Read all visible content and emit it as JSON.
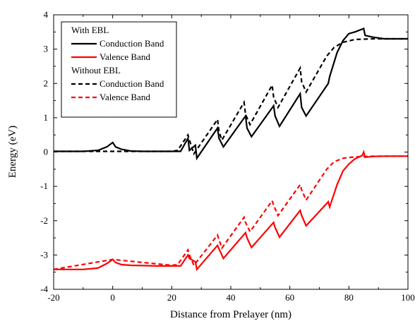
{
  "chart_data": {
    "type": "line",
    "title": "",
    "xlabel": "Distance from Prelayer (nm)",
    "ylabel": "Energy (eV)",
    "xlim": [
      -20,
      100
    ],
    "ylim": [
      -4,
      4
    ],
    "xticks": [
      -20,
      0,
      20,
      40,
      60,
      80,
      100
    ],
    "yticks": [
      -4,
      -3,
      -2,
      -1,
      0,
      1,
      2,
      3,
      4
    ],
    "grid": false,
    "legend_position": "top-left",
    "legend_groups": [
      {
        "header": "With EBL",
        "series": [
          0,
          1
        ]
      },
      {
        "header": "Without EBL",
        "series": [
          2,
          3
        ]
      }
    ],
    "series": [
      {
        "name": "Conduction Band",
        "group": "With EBL",
        "color": "#000000",
        "dash": "solid",
        "x": [
          -20,
          -10,
          -5,
          -2,
          0,
          1,
          3,
          6,
          10,
          15,
          20,
          23,
          25.5,
          26,
          28,
          28.5,
          35.5,
          36,
          37.5,
          45,
          45.5,
          47,
          54.5,
          55,
          56.5,
          63.5,
          64,
          65.5,
          73,
          73.5,
          76,
          78,
          80,
          82,
          85,
          85.5,
          88,
          92,
          96,
          100
        ],
        "y": [
          0.02,
          0.02,
          0.05,
          0.15,
          0.28,
          0.15,
          0.08,
          0.03,
          0.02,
          0.02,
          0.02,
          0.02,
          0.4,
          0.05,
          0.2,
          -0.18,
          0.7,
          0.4,
          0.15,
          1.05,
          0.7,
          0.45,
          1.35,
          1.05,
          0.75,
          1.7,
          1.3,
          1.05,
          2.0,
          2.2,
          2.9,
          3.25,
          3.45,
          3.5,
          3.6,
          3.4,
          3.35,
          3.3,
          3.3,
          3.3
        ]
      },
      {
        "name": "Valence Band",
        "group": "With EBL",
        "color": "#ff0000",
        "dash": "solid",
        "x": [
          -20,
          -10,
          -5,
          -2,
          0,
          1,
          3,
          6,
          10,
          15,
          20,
          23,
          25.5,
          26,
          28,
          28.5,
          35.5,
          36,
          37.5,
          45,
          45.5,
          47,
          54.5,
          55,
          56.5,
          63.5,
          64,
          65.5,
          73,
          73.5,
          76,
          78,
          80,
          82,
          84.5,
          85,
          85.5,
          88,
          92,
          96,
          100
        ],
        "y": [
          -3.42,
          -3.42,
          -3.38,
          -3.25,
          -3.13,
          -3.22,
          -3.28,
          -3.3,
          -3.31,
          -3.32,
          -3.32,
          -3.32,
          -3.0,
          -3.1,
          -3.2,
          -3.42,
          -2.72,
          -2.82,
          -3.1,
          -2.35,
          -2.5,
          -2.78,
          -2.05,
          -2.2,
          -2.48,
          -1.7,
          -1.85,
          -2.15,
          -1.45,
          -1.6,
          -0.95,
          -0.55,
          -0.35,
          -0.2,
          -0.1,
          0.0,
          -0.15,
          -0.13,
          -0.12,
          -0.12,
          -0.12
        ]
      },
      {
        "name": "Conduction Band",
        "group": "Without EBL",
        "color": "#000000",
        "dash": "dashed",
        "x": [
          -20,
          0,
          20,
          22,
          25.5,
          26,
          27.5,
          35.5,
          36,
          37,
          44.5,
          45,
          46.5,
          54,
          54.5,
          56,
          63.5,
          64,
          65.5,
          72.5,
          75,
          78,
          82,
          88,
          94,
          100
        ],
        "y": [
          0.02,
          0.02,
          0.02,
          0.05,
          0.5,
          0.35,
          -0.05,
          0.95,
          0.6,
          0.35,
          1.45,
          1.1,
          0.8,
          1.95,
          1.6,
          1.3,
          2.45,
          2.05,
          1.75,
          2.8,
          3.05,
          3.2,
          3.28,
          3.3,
          3.3,
          3.3
        ]
      },
      {
        "name": "Valence Band",
        "group": "Without EBL",
        "color": "#ff0000",
        "dash": "dashed",
        "x": [
          -20,
          0,
          20,
          22,
          25.5,
          26,
          27.5,
          35.5,
          36,
          37,
          44.5,
          45,
          46.5,
          54,
          54.5,
          56,
          63.5,
          64,
          65.5,
          72.5,
          75,
          78,
          82,
          88,
          94,
          100
        ],
        "y": [
          -3.42,
          -3.13,
          -3.3,
          -3.28,
          -2.85,
          -3.0,
          -3.3,
          -2.42,
          -2.55,
          -2.8,
          -1.9,
          -2.05,
          -2.32,
          -1.42,
          -1.55,
          -1.85,
          -0.95,
          -1.1,
          -1.4,
          -0.5,
          -0.28,
          -0.18,
          -0.14,
          -0.12,
          -0.12,
          -0.12
        ]
      }
    ]
  }
}
